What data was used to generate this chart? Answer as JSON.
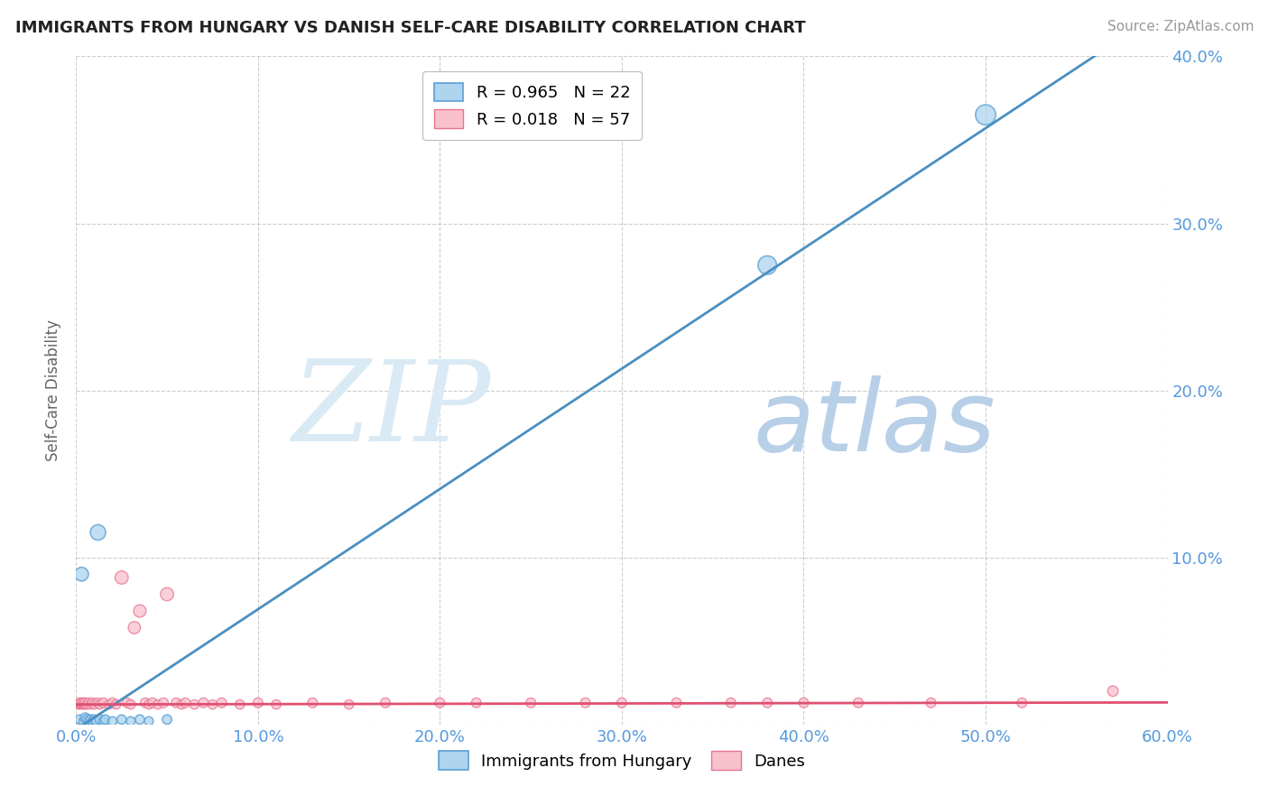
{
  "title": "IMMIGRANTS FROM HUNGARY VS DANISH SELF-CARE DISABILITY CORRELATION CHART",
  "source": "Source: ZipAtlas.com",
  "ylabel": "Self-Care Disability",
  "legend_blue_label": "Immigrants from Hungary",
  "legend_pink_label": "Danes",
  "xlim": [
    0.0,
    0.6
  ],
  "ylim": [
    0.0,
    0.4
  ],
  "xticks": [
    0.0,
    0.1,
    0.2,
    0.3,
    0.4,
    0.5,
    0.6
  ],
  "yticks": [
    0.0,
    0.1,
    0.2,
    0.3,
    0.4
  ],
  "xtick_labels": [
    "0.0%",
    "10.0%",
    "20.0%",
    "30.0%",
    "40.0%",
    "50.0%",
    "60.0%"
  ],
  "ytick_labels_right": [
    "",
    "10.0%",
    "20.0%",
    "30.0%",
    "40.0%"
  ],
  "blue_R": "R = 0.965",
  "blue_N": "N = 22",
  "pink_R": "R = 0.018",
  "pink_N": "N = 57",
  "blue_fill_color": "#aed4ee",
  "blue_edge_color": "#5a9fd4",
  "pink_fill_color": "#f9c0ce",
  "pink_edge_color": "#e8758f",
  "blue_line_color": "#4a8fc0",
  "pink_line_color": "#e05070",
  "background_color": "#ffffff",
  "grid_color": "#c8c8c8",
  "tick_color": "#5599dd",
  "watermark_zip_color": "#daeaf5",
  "watermark_atlas_color": "#b8cfe8",
  "blue_line_slope": 0.72,
  "blue_line_intercept": -0.003,
  "pink_line_slope": 0.002,
  "pink_line_intercept": 0.012,
  "blue_scatter_x": [
    0.002,
    0.004,
    0.005,
    0.006,
    0.007,
    0.008,
    0.009,
    0.01,
    0.011,
    0.013,
    0.015,
    0.016,
    0.02,
    0.025,
    0.03,
    0.035,
    0.04,
    0.05,
    0.003,
    0.012,
    0.38,
    0.5
  ],
  "blue_scatter_y": [
    0.003,
    0.002,
    0.004,
    0.003,
    0.002,
    0.003,
    0.002,
    0.003,
    0.002,
    0.003,
    0.002,
    0.003,
    0.002,
    0.003,
    0.002,
    0.003,
    0.002,
    0.003,
    0.09,
    0.115,
    0.275,
    0.365
  ],
  "blue_scatter_sizes": [
    55,
    50,
    60,
    55,
    50,
    55,
    50,
    55,
    50,
    55,
    50,
    55,
    50,
    55,
    50,
    55,
    50,
    55,
    120,
    150,
    220,
    260
  ],
  "pink_scatter_x": [
    0.001,
    0.002,
    0.002,
    0.003,
    0.003,
    0.004,
    0.004,
    0.005,
    0.005,
    0.006,
    0.007,
    0.008,
    0.009,
    0.01,
    0.012,
    0.013,
    0.015,
    0.018,
    0.02,
    0.022,
    0.025,
    0.028,
    0.03,
    0.032,
    0.035,
    0.038,
    0.04,
    0.042,
    0.045,
    0.048,
    0.05,
    0.055,
    0.058,
    0.06,
    0.065,
    0.07,
    0.075,
    0.08,
    0.09,
    0.1,
    0.11,
    0.13,
    0.15,
    0.17,
    0.2,
    0.22,
    0.25,
    0.28,
    0.3,
    0.33,
    0.36,
    0.38,
    0.4,
    0.43,
    0.47,
    0.52,
    0.57
  ],
  "pink_scatter_y": [
    0.012,
    0.012,
    0.013,
    0.012,
    0.013,
    0.012,
    0.013,
    0.012,
    0.013,
    0.012,
    0.013,
    0.012,
    0.013,
    0.012,
    0.013,
    0.012,
    0.013,
    0.012,
    0.013,
    0.012,
    0.088,
    0.013,
    0.012,
    0.058,
    0.068,
    0.013,
    0.012,
    0.013,
    0.012,
    0.013,
    0.078,
    0.013,
    0.012,
    0.013,
    0.012,
    0.013,
    0.012,
    0.013,
    0.012,
    0.013,
    0.012,
    0.013,
    0.012,
    0.013,
    0.013,
    0.013,
    0.013,
    0.013,
    0.013,
    0.013,
    0.013,
    0.013,
    0.013,
    0.013,
    0.013,
    0.013,
    0.02
  ],
  "pink_scatter_sizes": [
    55,
    55,
    60,
    55,
    60,
    55,
    60,
    55,
    60,
    55,
    60,
    55,
    60,
    55,
    60,
    55,
    60,
    55,
    60,
    55,
    110,
    60,
    55,
    95,
    100,
    60,
    55,
    60,
    55,
    60,
    110,
    60,
    55,
    60,
    55,
    60,
    55,
    60,
    55,
    60,
    55,
    60,
    55,
    60,
    60,
    60,
    60,
    60,
    60,
    60,
    60,
    60,
    60,
    60,
    60,
    60,
    70
  ]
}
